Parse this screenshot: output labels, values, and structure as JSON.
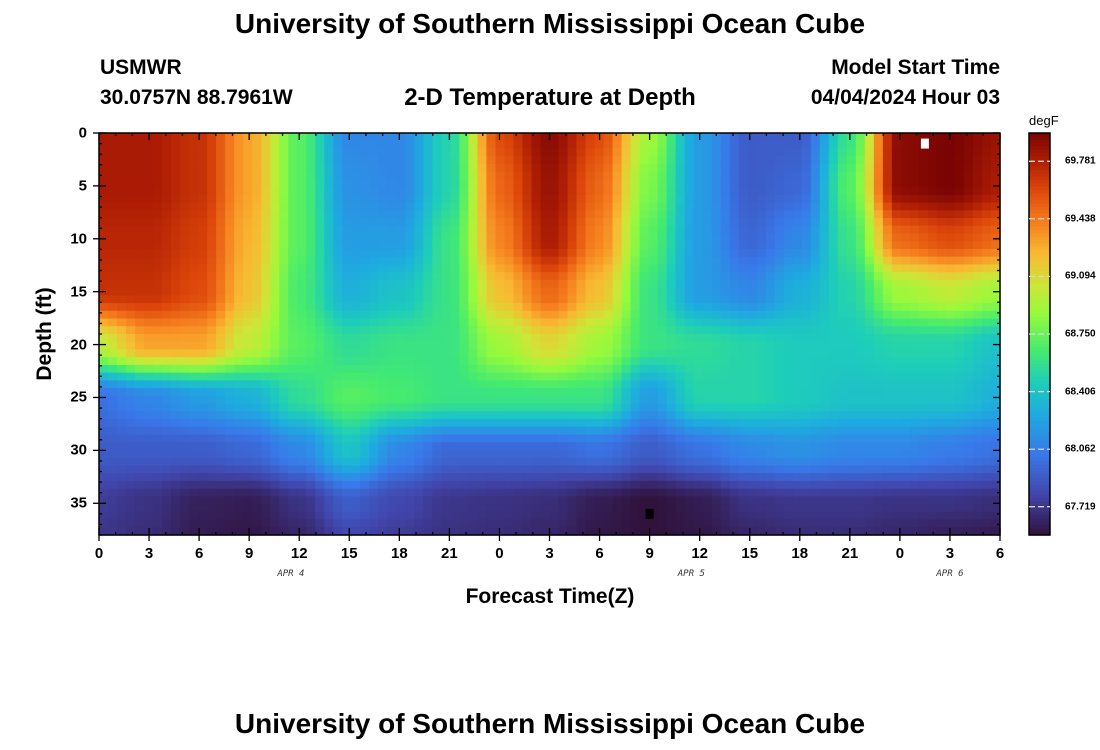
{
  "header": {
    "title": "University of Southern Mississippi Ocean Cube",
    "station_id": "USMWR",
    "station_coords": "30.0757N  88.7961W",
    "plot_title": "2-D Temperature at Depth",
    "model_start_label": "Model Start Time",
    "model_start_value": "04/04/2024 Hour 03"
  },
  "footer": {
    "title": "University of Southern Mississippi Ocean Cube"
  },
  "chart_data": {
    "type": "heatmap",
    "title": "2-D Temperature at Depth",
    "xlabel": "Forecast Time(Z)",
    "ylabel": "Depth (ft)",
    "x_range_hours": [
      0,
      54
    ],
    "y_range_ft": [
      0,
      38
    ],
    "x_ticks": [
      "0",
      "3",
      "6",
      "9",
      "12",
      "15",
      "18",
      "21",
      "0",
      "3",
      "6",
      "9",
      "12",
      "15",
      "18",
      "21",
      "0",
      "3",
      "6"
    ],
    "y_ticks": [
      "0",
      "5",
      "10",
      "15",
      "20",
      "25",
      "30",
      "35"
    ],
    "date_labels": [
      {
        "text": "APR 4",
        "hour": 11.5
      },
      {
        "text": "APR 5",
        "hour": 35.5
      },
      {
        "text": "APR 6",
        "hour": 51
      }
    ],
    "colorbar": {
      "unit": "degF",
      "min": 67.55,
      "max": 69.95,
      "labels": [
        "69.781",
        "69.438",
        "69.094",
        "68.750",
        "68.406",
        "68.062",
        "67.719"
      ]
    },
    "markers": [
      {
        "type": "max",
        "hour": 49.5,
        "depth_ft": 1,
        "color": "#ffffff"
      },
      {
        "type": "min",
        "hour": 33,
        "depth_ft": 36,
        "color": "#000000"
      }
    ],
    "grid_hours": [
      0,
      3,
      6,
      9,
      12,
      15,
      18,
      21,
      24,
      27,
      30,
      33,
      36,
      39,
      42,
      45,
      48,
      51,
      54
    ],
    "grid_depths_ft": [
      0,
      5,
      10,
      15,
      20,
      25,
      30,
      35,
      38
    ],
    "temperature_degF": [
      [
        69.8,
        69.8,
        69.7,
        69.3,
        68.7,
        68.1,
        68.1,
        68.5,
        69.6,
        69.9,
        69.6,
        68.9,
        68.2,
        67.9,
        67.9,
        68.6,
        69.9,
        69.95,
        69.85
      ],
      [
        69.8,
        69.8,
        69.7,
        69.3,
        68.7,
        68.15,
        68.1,
        68.5,
        69.5,
        69.85,
        69.5,
        68.8,
        68.2,
        67.9,
        67.95,
        68.7,
        69.9,
        69.95,
        69.8
      ],
      [
        69.75,
        69.75,
        69.65,
        69.25,
        68.7,
        68.2,
        68.2,
        68.6,
        69.4,
        69.8,
        69.4,
        68.7,
        68.2,
        67.95,
        68.1,
        68.6,
        69.5,
        69.6,
        69.5
      ],
      [
        69.7,
        69.7,
        69.6,
        69.2,
        68.65,
        68.3,
        68.4,
        68.6,
        69.2,
        69.5,
        69.2,
        68.6,
        68.2,
        68.1,
        68.3,
        68.5,
        68.9,
        69.0,
        68.9
      ],
      [
        69.0,
        69.3,
        69.3,
        69.0,
        68.7,
        68.55,
        68.6,
        68.6,
        68.9,
        69.1,
        68.9,
        68.6,
        68.55,
        68.5,
        68.45,
        68.45,
        68.5,
        68.5,
        68.4
      ],
      [
        68.0,
        68.1,
        68.2,
        68.3,
        68.55,
        68.7,
        68.65,
        68.6,
        68.6,
        68.6,
        68.6,
        68.2,
        68.5,
        68.5,
        68.45,
        68.4,
        68.4,
        68.4,
        68.3
      ],
      [
        67.9,
        67.9,
        67.9,
        67.95,
        68.1,
        68.4,
        68.1,
        67.95,
        67.95,
        67.95,
        68.0,
        67.9,
        68.0,
        68.1,
        68.15,
        68.1,
        68.1,
        68.05,
        68.0
      ],
      [
        67.75,
        67.7,
        67.62,
        67.6,
        67.7,
        67.9,
        67.8,
        67.72,
        67.7,
        67.68,
        67.6,
        67.55,
        67.6,
        67.7,
        67.72,
        67.72,
        67.7,
        67.7,
        67.68
      ],
      [
        67.72,
        67.68,
        67.6,
        67.58,
        67.65,
        67.8,
        67.75,
        67.7,
        67.68,
        67.65,
        67.58,
        67.55,
        67.58,
        67.65,
        67.68,
        67.68,
        67.65,
        67.62,
        67.6
      ]
    ]
  }
}
